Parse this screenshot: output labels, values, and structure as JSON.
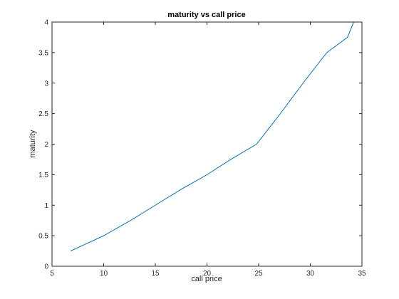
{
  "chart_data": {
    "type": "line",
    "title": "maturity vs call price",
    "xlabel": "call price",
    "ylabel": "maturity",
    "xlim": [
      5,
      35
    ],
    "ylim": [
      0,
      4
    ],
    "xticks": [
      5,
      10,
      15,
      20,
      25,
      30,
      35
    ],
    "yticks": [
      0,
      0.5,
      1,
      1.5,
      2,
      2.5,
      3,
      3.5,
      4
    ],
    "xtick_labels": [
      "5",
      "10",
      "15",
      "20",
      "25",
      "30",
      "35"
    ],
    "ytick_labels": [
      "0",
      "0.5",
      "1",
      "1.5",
      "2",
      "2.5",
      "3",
      "3.5",
      "4"
    ],
    "grid": false,
    "series": [
      {
        "color": "#0072BD",
        "x": [
          6.8,
          10.0,
          12.6,
          15.0,
          17.4,
          20.0,
          22.3,
          24.8,
          27.1,
          29.3,
          31.6,
          33.6,
          34.2
        ],
        "y": [
          0.25,
          0.5,
          0.75,
          1.0,
          1.25,
          1.5,
          1.75,
          2.0,
          2.5,
          3.0,
          3.5,
          3.75,
          4.0
        ]
      }
    ]
  }
}
